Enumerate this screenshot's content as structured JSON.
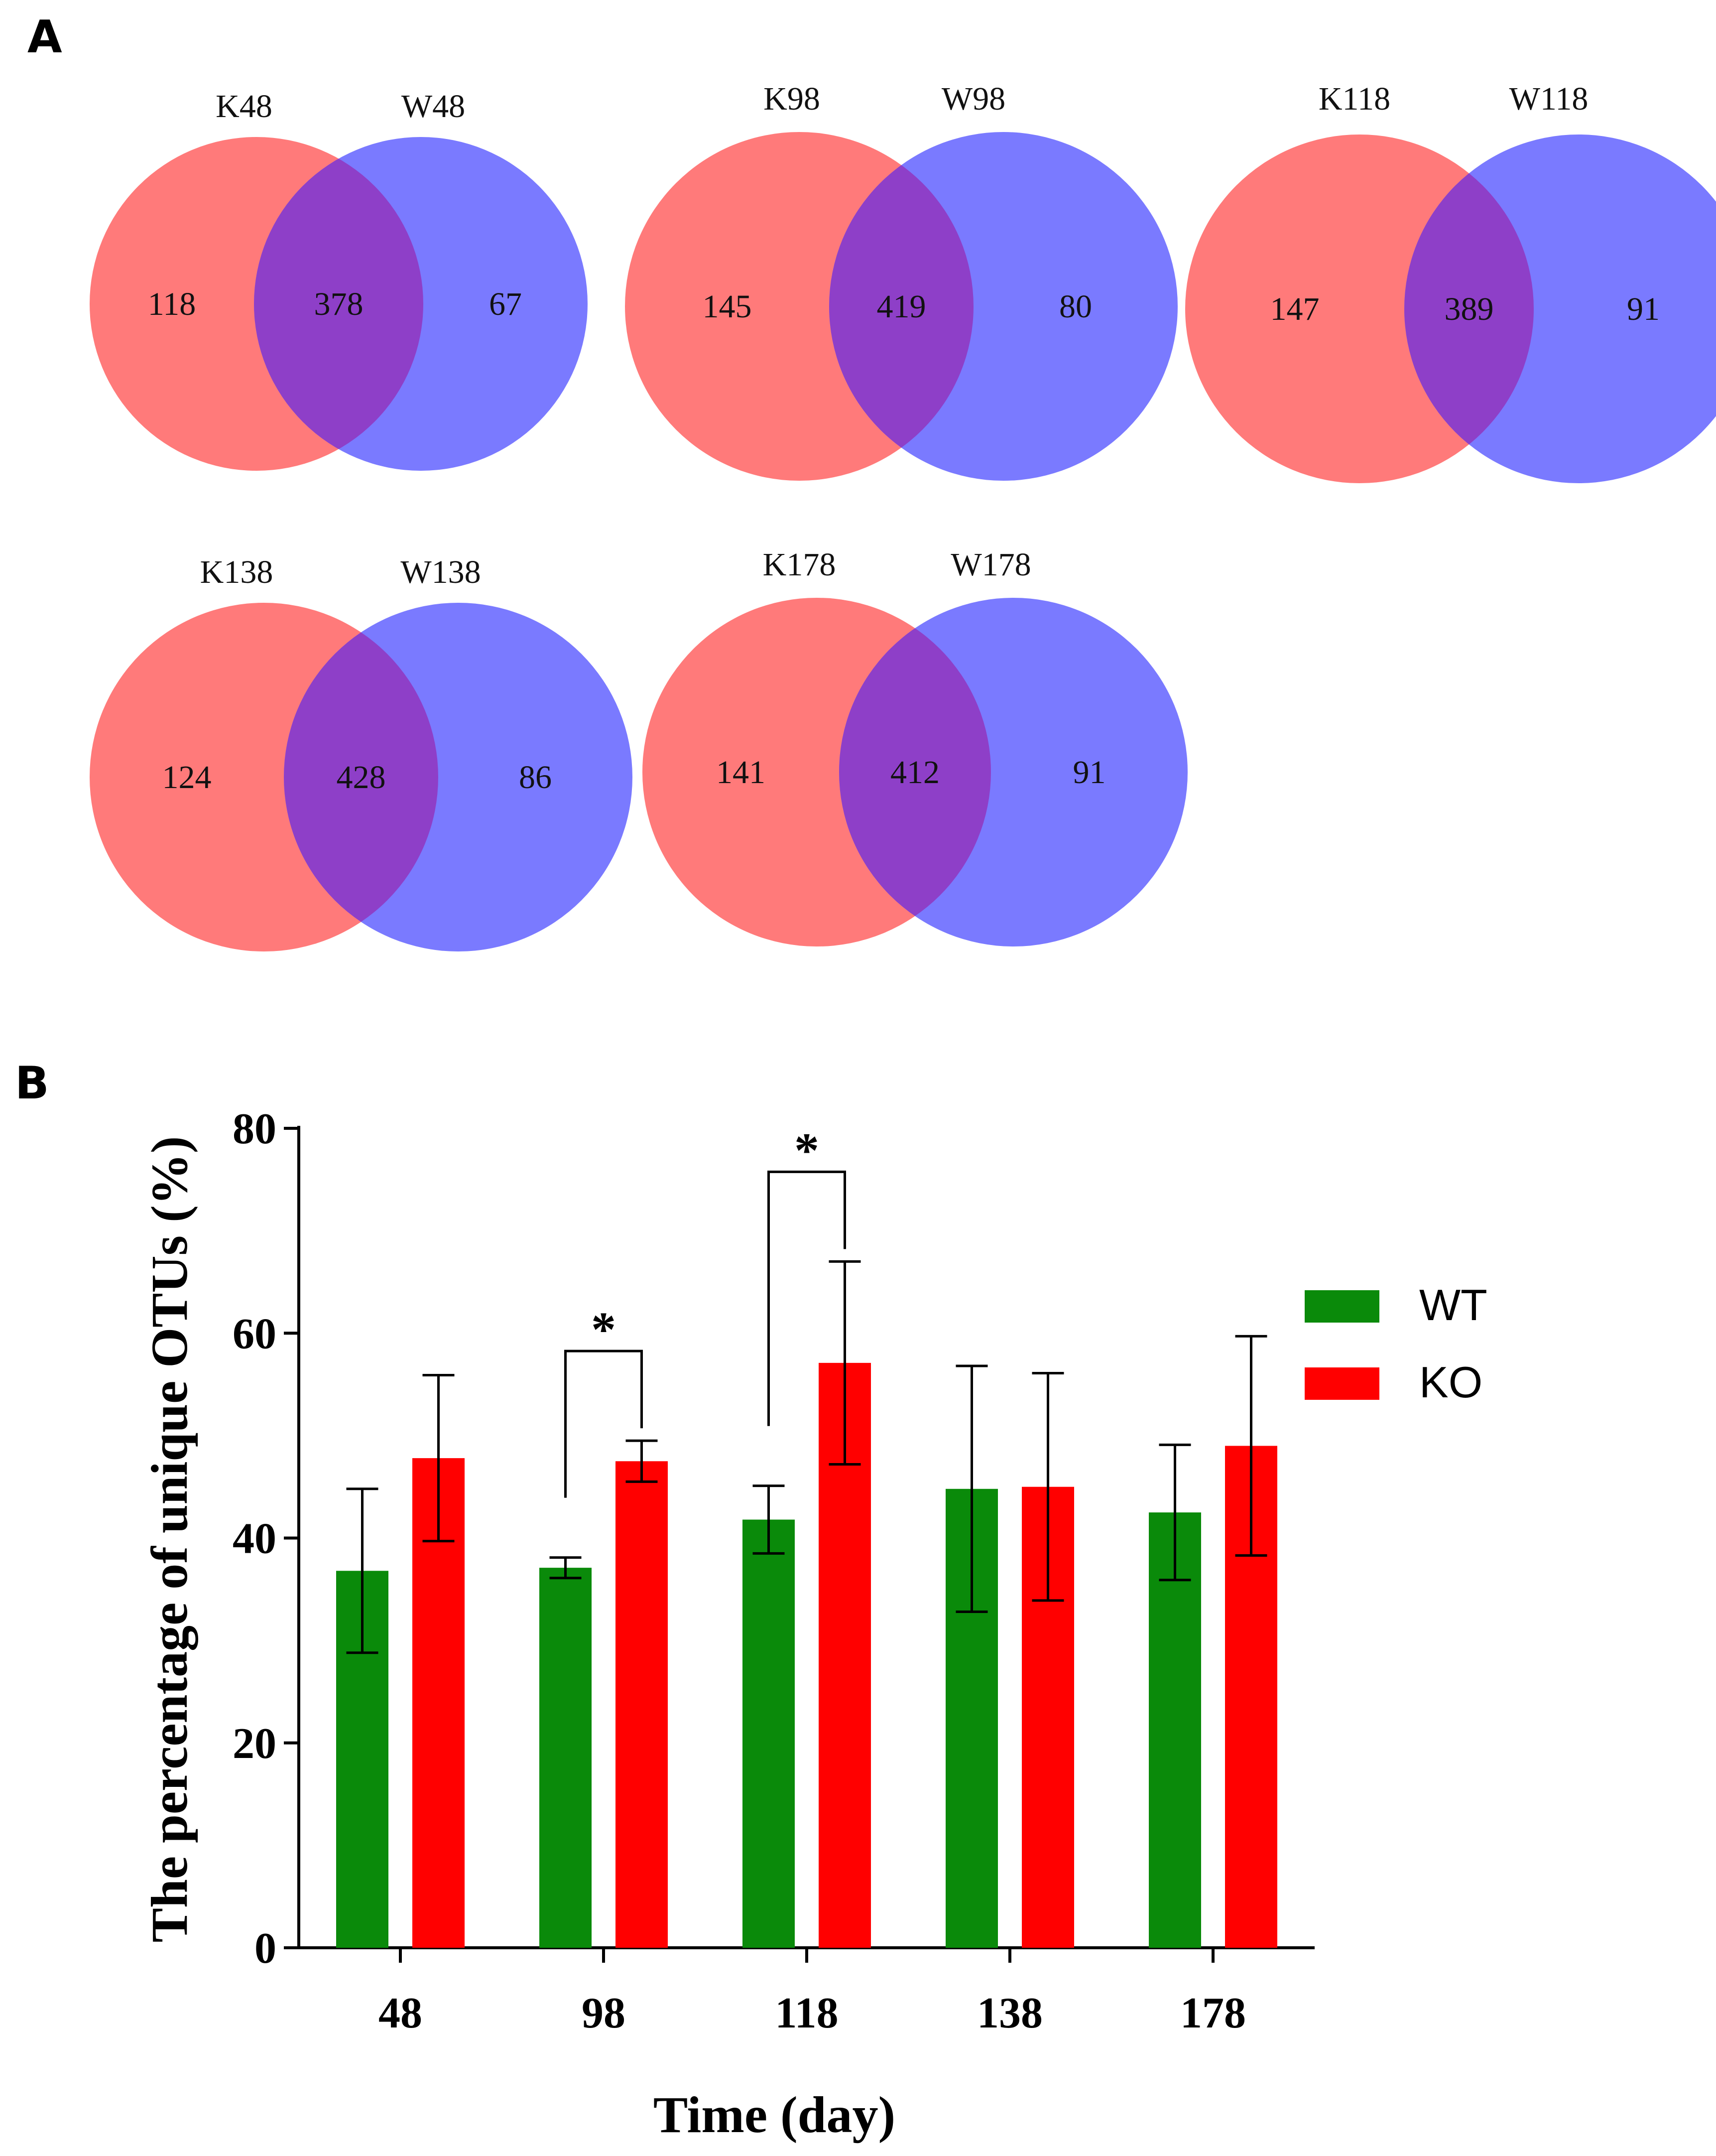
{
  "panels": {
    "a_label": "A",
    "b_label": "B"
  },
  "colors": {
    "ko_circle": "#ff7a7a",
    "wt_circle": "#7a7aff",
    "overlap": "#8e3fc8",
    "wt_bar": "#0a8a0a",
    "ko_bar": "#ff0000"
  },
  "venn": [
    {
      "left_label": "K48",
      "right_label": "W48",
      "left_only": "118",
      "overlap": "378",
      "right_only": "67"
    },
    {
      "left_label": "K98",
      "right_label": "W98",
      "left_only": "145",
      "overlap": "419",
      "right_only": "80"
    },
    {
      "left_label": "K118",
      "right_label": "W118",
      "left_only": "147",
      "overlap": "389",
      "right_only": "91"
    },
    {
      "left_label": "K138",
      "right_label": "W138",
      "left_only": "124",
      "overlap": "428",
      "right_only": "86"
    },
    {
      "left_label": "K178",
      "right_label": "W178",
      "left_only": "141",
      "overlap": "412",
      "right_only": "91"
    }
  ],
  "chart_data": {
    "type": "bar",
    "categories": [
      "48",
      "98",
      "118",
      "138",
      "178"
    ],
    "series": [
      {
        "name": "WT",
        "values": [
          36.8,
          37.1,
          41.8,
          44.8,
          42.5
        ],
        "errors": [
          8.0,
          1.0,
          3.3,
          12.0,
          6.6
        ]
      },
      {
        "name": "KO",
        "values": [
          47.8,
          47.5,
          57.1,
          45.0,
          49.0
        ],
        "errors": [
          8.1,
          2.0,
          9.9,
          11.1,
          10.7
        ]
      }
    ],
    "significance": [
      {
        "category": "98",
        "label": "*"
      },
      {
        "category": "118",
        "label": "*"
      }
    ],
    "xlabel": "Time (day)",
    "ylabel": "The percentage of unique OTUs (%)",
    "ylim": [
      0,
      80
    ],
    "yticks": [
      "0",
      "20",
      "40",
      "60",
      "80"
    ],
    "legend_position": "right"
  }
}
